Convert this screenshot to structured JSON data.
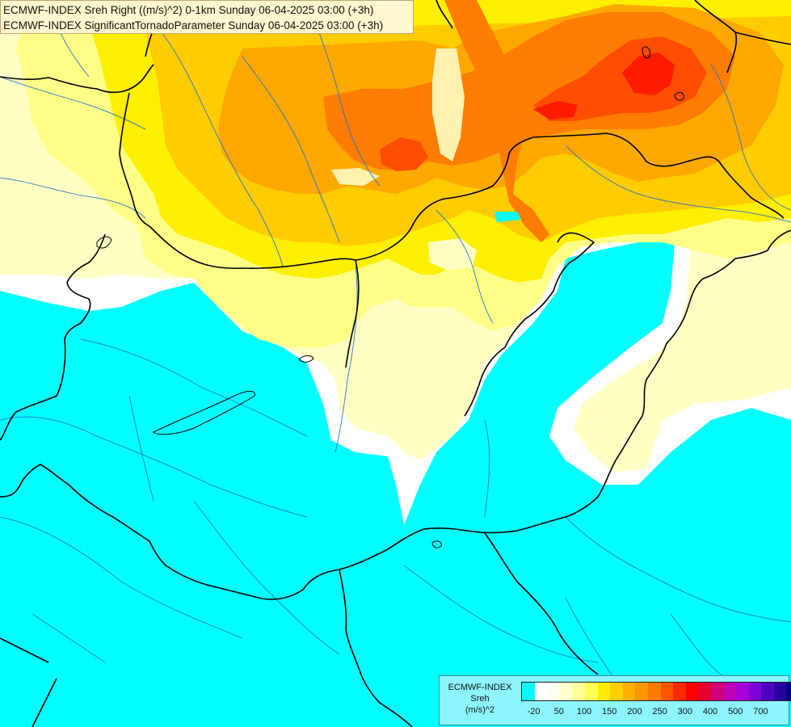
{
  "title": {
    "line1": "ECMWF-INDEX Sreh Right ((m/s)^2) 0-1km Sunday 06-04-2025 03:00 (+3h)",
    "line2": "ECMWF-INDEX SignificantTornadoParameter Sunday 06-04-2025 03:00 (+3h)"
  },
  "legend": {
    "title_lines": [
      "ECMWF-INDEX",
      "Sreh",
      "(m/s)^2"
    ],
    "colors": [
      "#00ffff",
      "#ffffff",
      "#fffff0",
      "#ffffcc",
      "#ffff99",
      "#ffff55",
      "#ffee00",
      "#ffd000",
      "#ffb000",
      "#ff9500",
      "#ff7a00",
      "#ff5500",
      "#ff2a00",
      "#ff0000",
      "#e60030",
      "#d00078",
      "#c000b4",
      "#a800d8",
      "#7d00d8",
      "#5000c0",
      "#2800a0",
      "#000080"
    ],
    "tick_labels": [
      "-20",
      "50",
      "100",
      "150",
      "200",
      "250",
      "300",
      "400",
      "500",
      "700"
    ]
  },
  "map": {
    "colors": {
      "cyan": "#00ffff",
      "white": "#ffffff",
      "pale": "#ffffc0",
      "light_yellow": "#ffff80",
      "yellow": "#ffee00",
      "gold": "#ffcc00",
      "orange": "#ffa000",
      "dark_orange": "#ff7800",
      "red_orange": "#ff4000",
      "red": "#ff1800",
      "border": "#000000",
      "river": "#1e6ec8"
    }
  }
}
